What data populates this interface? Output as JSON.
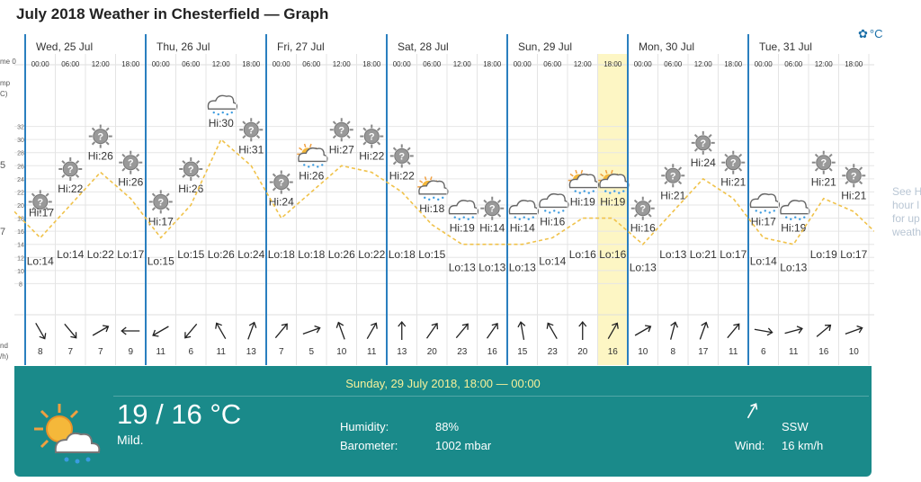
{
  "title": "July 2018 Weather in Chesterfield — Graph",
  "unit_button": {
    "icon": "gear-icon",
    "label": "°C"
  },
  "side_note": [
    "See H",
    "hour l",
    "for up",
    "weath"
  ],
  "left_axis": {
    "time_label": "me 0",
    "temp_label_1": "mp",
    "temp_label_2": "C)",
    "temp_ticks": [
      "5",
      "7"
    ],
    "wind_label_1": "nd",
    "wind_label_2": "/h)"
  },
  "y_ticks": [
    32,
    30,
    28,
    26,
    24,
    22,
    20,
    18,
    16,
    14,
    12,
    10,
    8
  ],
  "days": [
    {
      "label": "Wed, 25 Jul",
      "slots": [
        {
          "time": "00:00",
          "icon": "sun",
          "hi": null,
          "lo": "Lo:14",
          "temp": 15,
          "wind": 8,
          "dir": 150
        },
        {
          "time": "06:00",
          "icon": "sun",
          "hi": "Hi:22",
          "lo": "Lo:14",
          "temp": 20,
          "wind": 7,
          "dir": 140
        },
        {
          "time": "12:00",
          "icon": "sun",
          "hi": "Hi:26",
          "lo": "Lo:22",
          "temp": 25,
          "wind": 7,
          "dir": 60
        },
        {
          "time": "18:00",
          "icon": "sun",
          "hi": "Hi:26",
          "lo": "Lo:17",
          "temp": 21,
          "wind": 9,
          "dir": 270
        }
      ],
      "leading_hi": "Hi:17",
      "leading_lo": null
    },
    {
      "label": "Thu, 26 Jul",
      "slots": [
        {
          "time": "00:00",
          "icon": "sun",
          "hi": "Hi:17",
          "lo": "Lo:15",
          "temp": 15,
          "wind": 11,
          "dir": 240
        },
        {
          "time": "06:00",
          "icon": "sun",
          "hi": "Hi:26",
          "lo": "Lo:15",
          "temp": 20,
          "wind": 6,
          "dir": 220
        },
        {
          "time": "12:00",
          "icon": "rain",
          "hi": "Hi:30",
          "lo": "Lo:26",
          "temp": 30,
          "wind": 11,
          "dir": 330
        },
        {
          "time": "18:00",
          "icon": "sun",
          "hi": "Hi:31",
          "lo": "Lo:24",
          "temp": 26,
          "wind": 13,
          "dir": 20
        }
      ]
    },
    {
      "label": "Fri, 27 Jul",
      "slots": [
        {
          "time": "00:00",
          "icon": "sun",
          "hi": "Hi:24",
          "lo": "Lo:18",
          "temp": 18,
          "wind": 7,
          "dir": 40
        },
        {
          "time": "06:00",
          "icon": "sunrain",
          "hi": "Hi:26",
          "lo": "Lo:18",
          "temp": 22,
          "wind": 5,
          "dir": 70
        },
        {
          "time": "12:00",
          "icon": "sun",
          "hi": "Hi:27",
          "lo": "Lo:26",
          "temp": 26,
          "wind": 10,
          "dir": 340
        },
        {
          "time": "18:00",
          "icon": "sun",
          "hi": "Hi:22",
          "lo": "Lo:22",
          "temp": 25,
          "wind": 11,
          "dir": 30
        }
      ]
    },
    {
      "label": "Sat, 28 Jul",
      "slots": [
        {
          "time": "00:00",
          "icon": "sun",
          "hi": "Hi:22",
          "lo": "Lo:18",
          "temp": 22,
          "wind": 13,
          "dir": 0
        },
        {
          "time": "06:00",
          "icon": "sunrain",
          "hi": "Hi:18",
          "lo": "Lo:15",
          "temp": 17,
          "wind": 20,
          "dir": 35
        },
        {
          "time": "12:00",
          "icon": "cloudrain",
          "hi": "Hi:19",
          "lo": "Lo:13",
          "temp": 14,
          "wind": 23,
          "dir": 40
        },
        {
          "time": "18:00",
          "icon": "sun",
          "hi": "Hi:14",
          "lo": "Lo:13",
          "temp": 14,
          "wind": 16,
          "dir": 35
        }
      ]
    },
    {
      "label": "Sun, 29 Jul",
      "slots": [
        {
          "time": "00:00",
          "icon": "cloudrain",
          "hi": "Hi:14",
          "lo": "Lo:13",
          "temp": 14,
          "wind": 15,
          "dir": 350
        },
        {
          "time": "06:00",
          "icon": "cloudrain",
          "hi": "Hi:16",
          "lo": "Lo:14",
          "temp": 15,
          "wind": 23,
          "dir": 330
        },
        {
          "time": "12:00",
          "icon": "sunrain",
          "hi": "Hi:19",
          "lo": "Lo:16",
          "temp": 18,
          "wind": 20,
          "dir": 0
        },
        {
          "time": "18:00",
          "icon": "sunrain",
          "hi": "Hi:19",
          "lo": "Lo:16",
          "temp": 18,
          "wind": 16,
          "dir": 30
        }
      ]
    },
    {
      "label": "Mon, 30 Jul",
      "slots": [
        {
          "time": "00:00",
          "icon": "sun",
          "hi": "Hi:16",
          "lo": "Lo:13",
          "temp": 14,
          "wind": 10,
          "dir": 60
        },
        {
          "time": "06:00",
          "icon": "sun",
          "hi": "Hi:21",
          "lo": "Lo:13",
          "temp": 19,
          "wind": 8,
          "dir": 15
        },
        {
          "time": "12:00",
          "icon": "sun",
          "hi": "Hi:24",
          "lo": "Lo:21",
          "temp": 24,
          "wind": 17,
          "dir": 20
        },
        {
          "time": "18:00",
          "icon": "sun",
          "hi": "Hi:21",
          "lo": "Lo:17",
          "temp": 21,
          "wind": 11,
          "dir": 40
        }
      ]
    },
    {
      "label": "Tue, 31 Jul",
      "slots": [
        {
          "time": "00:00",
          "icon": "cloudrain",
          "hi": "Hi:17",
          "lo": "Lo:14",
          "temp": 15,
          "wind": 6,
          "dir": 100
        },
        {
          "time": "06:00",
          "icon": "cloudrain",
          "hi": "Hi:19",
          "lo": "Lo:13",
          "temp": 14,
          "wind": 11,
          "dir": 75
        },
        {
          "time": "12:00",
          "icon": "sun",
          "hi": "Hi:21",
          "lo": "Lo:19",
          "temp": 21,
          "wind": 16,
          "dir": 50
        },
        {
          "time": "18:00",
          "icon": "sun",
          "hi": "Hi:21",
          "lo": "Lo:17",
          "temp": 19,
          "wind": 10,
          "dir": 70
        }
      ]
    }
  ],
  "selected": {
    "day": 4,
    "slot": 3
  },
  "detail": {
    "range": "Sunday, 29 July 2018, 18:00 — 00:00",
    "temp": "19 / 16 °C",
    "desc": "Mild.",
    "humidity_label": "Humidity:",
    "humidity": "88%",
    "barometer_label": "Barometer:",
    "barometer": "1002 mbar",
    "wind_dir": "SSW",
    "wind_label": "Wind:",
    "wind": "16 km/h",
    "icon": "sun-cloud-rain-icon"
  },
  "colors": {
    "panel": "#1a8a8a",
    "day_divider": "#2a7fbf",
    "highlight": "#fdf6c4",
    "temp_line": "#f0c24a",
    "range_text": "#f6f09a"
  }
}
